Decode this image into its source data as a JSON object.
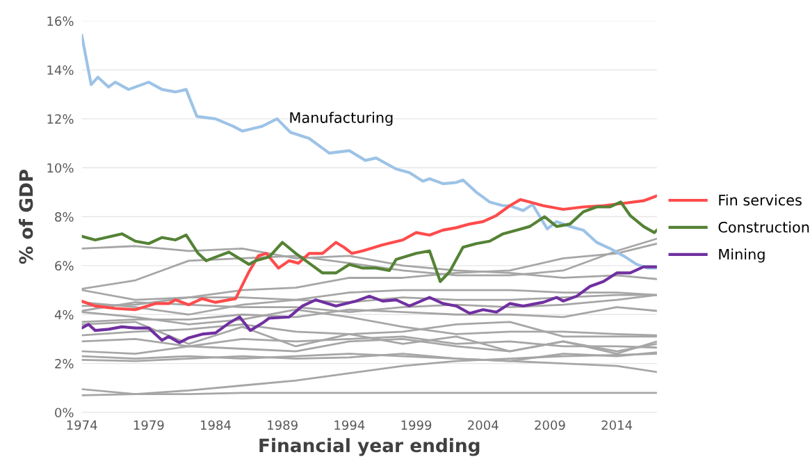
{
  "chart_data": {
    "type": "line",
    "xlabel": "Financial year ending",
    "ylabel": "% of GDP",
    "x": [
      1974,
      1978,
      1982,
      1986,
      1990,
      1994,
      1998,
      2002,
      2006,
      2010,
      2014,
      2017
    ],
    "xlim": [
      1974,
      2017
    ],
    "xticks": [
      1974,
      1979,
      1984,
      1989,
      1994,
      1999,
      2004,
      2009,
      2014
    ],
    "ylim": [
      0,
      16
    ],
    "yticks": [
      {
        "value": 0,
        "label": "0%"
      },
      {
        "value": 2,
        "label": "2%"
      },
      {
        "value": 4,
        "label": "4%"
      },
      {
        "value": 6,
        "label": "6%"
      },
      {
        "value": 8,
        "label": "8%"
      },
      {
        "value": 10,
        "label": "10%"
      },
      {
        "value": 12,
        "label": "12%"
      },
      {
        "value": 14,
        "label": "14%"
      },
      {
        "value": 16,
        "label": "16%"
      }
    ],
    "grid": "y",
    "legend": "right",
    "marker": "none",
    "line_style": "solid",
    "annotations": [
      "Manufacturing"
    ],
    "series": [
      {
        "color": "#a6a6a6",
        "values": [
          6.7,
          6.8,
          6.6,
          6.7,
          6.3,
          6.4,
          6.0,
          5.8,
          5.7,
          5.5,
          5.6,
          5.45
        ]
      },
      {
        "color": "#a6a6a6",
        "values": [
          5.05,
          5.4,
          6.2,
          6.3,
          6.4,
          6.1,
          5.8,
          5.6,
          5.6,
          5.8,
          6.6,
          7.1
        ]
      },
      {
        "color": "#a6a6a6",
        "values": [
          5.0,
          4.6,
          4.7,
          5.0,
          5.1,
          5.5,
          5.5,
          5.7,
          5.8,
          6.3,
          6.5,
          6.9
        ]
      },
      {
        "color": "#a6a6a6",
        "values": [
          4.35,
          4.4,
          4.7,
          4.7,
          4.6,
          4.9,
          5.0,
          5.0,
          5.0,
          4.9,
          4.9,
          4.8
        ]
      },
      {
        "color": "#a6a6a6",
        "values": [
          4.15,
          4.5,
          4.4,
          4.3,
          4.3,
          4.1,
          4.3,
          4.4,
          4.3,
          4.4,
          4.6,
          4.8
        ]
      },
      {
        "color": "#a6a6a6",
        "values": [
          3.7,
          3.8,
          3.8,
          4.0,
          3.9,
          4.2,
          4.1,
          4.0,
          4.0,
          3.9,
          4.3,
          4.15
        ]
      },
      {
        "color": "#a6a6a6",
        "values": [
          4.1,
          3.9,
          3.6,
          3.8,
          4.2,
          3.9,
          3.5,
          3.2,
          3.3,
          3.3,
          3.2,
          3.15
        ]
      },
      {
        "color": "#a6a6a6",
        "values": [
          3.15,
          3.3,
          3.4,
          3.6,
          3.3,
          3.2,
          3.3,
          3.6,
          3.7,
          3.1,
          3.1,
          3.1
        ]
      },
      {
        "color": "#a6a6a6",
        "values": [
          2.9,
          3.0,
          2.7,
          3.0,
          2.9,
          3.0,
          3.1,
          2.8,
          2.9,
          2.7,
          2.7,
          2.65
        ]
      },
      {
        "color": "#a6a6a6",
        "values": [
          2.5,
          2.4,
          2.7,
          2.6,
          2.5,
          2.9,
          3.0,
          2.7,
          2.5,
          2.9,
          2.5,
          2.8
        ]
      },
      {
        "color": "#a6a6a6",
        "values": [
          2.3,
          2.2,
          2.3,
          2.2,
          2.3,
          2.4,
          2.3,
          2.2,
          2.1,
          2.4,
          2.3,
          2.45
        ]
      },
      {
        "color": "#a6a6a6",
        "values": [
          2.15,
          2.1,
          2.2,
          2.3,
          2.2,
          2.25,
          2.4,
          2.2,
          2.1,
          2.0,
          1.9,
          1.65
        ]
      },
      {
        "color": "#a6a6a6",
        "values": [
          0.95,
          0.75,
          0.9,
          1.1,
          1.3,
          1.6,
          1.9,
          2.1,
          2.2,
          2.3,
          2.35,
          2.4
        ]
      },
      {
        "color": "#a6a6a6",
        "values": [
          0.7,
          0.75,
          0.75,
          0.8,
          0.8,
          0.8,
          0.8,
          0.8,
          0.8,
          0.8,
          0.8,
          0.8
        ]
      },
      {
        "color": "#a6a6a6",
        "values": [
          3.6,
          3.7,
          2.8,
          3.5,
          2.7,
          3.2,
          2.8,
          3.1,
          2.5,
          2.9,
          2.4,
          2.9
        ]
      },
      {
        "color": "#a6a6a6",
        "values": [
          4.5,
          4.3,
          4.0,
          4.4,
          4.6,
          4.5,
          4.7,
          4.6,
          4.6,
          4.7,
          4.8,
          4.8
        ]
      },
      {
        "color": "#9dc3e6",
        "x": [
          1974,
          1974.7,
          1975.2,
          1976,
          1976.5,
          1977.5,
          1979,
          1980,
          1981,
          1981.8,
          1982.6,
          1984,
          1985.3,
          1986,
          1987.5,
          1988.6,
          1989.6,
          1991,
          1992.5,
          1994,
          1995.2,
          1996,
          1997.5,
          1998.5,
          1999.5,
          2000,
          2001,
          2002,
          2002.5,
          2003.5,
          2004.5,
          2005.5,
          2006,
          2007,
          2007.7,
          2008.8,
          2009.5,
          2010.5,
          2011.5,
          2012.5,
          2013.5,
          2014.5,
          2015.5,
          2016.3,
          2017
        ],
        "values": [
          15.4,
          13.4,
          13.7,
          13.3,
          13.5,
          13.2,
          13.5,
          13.2,
          13.1,
          13.2,
          12.1,
          12.0,
          11.7,
          11.5,
          11.7,
          12.0,
          11.45,
          11.2,
          10.6,
          10.7,
          10.3,
          10.4,
          9.95,
          9.8,
          9.45,
          9.55,
          9.35,
          9.4,
          9.5,
          9.0,
          8.6,
          8.45,
          8.45,
          8.25,
          8.5,
          7.5,
          7.8,
          7.6,
          7.45,
          6.95,
          6.7,
          6.4,
          6.05,
          5.9,
          5.9
        ]
      },
      {
        "name": "Fin services",
        "color": "#ff4b4b",
        "x": [
          1974,
          1975,
          1976.5,
          1978,
          1979.5,
          1980.5,
          1981,
          1982,
          1983,
          1984,
          1985.5,
          1986.5,
          1987.2,
          1987.8,
          1988.7,
          1989.5,
          1990.2,
          1991,
          1992,
          1993,
          1993.6,
          1994.2,
          1995,
          1996.5,
          1998,
          1999,
          2000,
          2001,
          2002,
          2003,
          2004,
          2005,
          2006,
          2006.8,
          2007.5,
          2008.5,
          2010,
          2011.5,
          2013,
          2014.5,
          2016,
          2017
        ],
        "values": [
          4.55,
          4.35,
          4.25,
          4.2,
          4.45,
          4.45,
          4.6,
          4.4,
          4.65,
          4.5,
          4.65,
          5.75,
          6.4,
          6.5,
          5.9,
          6.2,
          6.1,
          6.5,
          6.5,
          6.95,
          6.75,
          6.5,
          6.6,
          6.85,
          7.05,
          7.35,
          7.25,
          7.45,
          7.55,
          7.7,
          7.8,
          8.05,
          8.45,
          8.7,
          8.6,
          8.45,
          8.3,
          8.4,
          8.45,
          8.55,
          8.65,
          8.85
        ]
      },
      {
        "name": "Construction",
        "color": "#548235",
        "x": [
          1974,
          1975,
          1976.2,
          1977,
          1978,
          1979,
          1980,
          1981,
          1981.8,
          1982.7,
          1983.3,
          1984,
          1985,
          1986.5,
          1987,
          1988,
          1989,
          1990,
          1991,
          1992,
          1993,
          1994,
          1995,
          1996,
          1997,
          1997.5,
          1999,
          2000,
          2000.8,
          2001.5,
          2002.5,
          2003.5,
          2004.5,
          2005.5,
          2006.5,
          2007.5,
          2008.6,
          2009.5,
          2010.5,
          2011.5,
          2012.5,
          2013.5,
          2014.3,
          2015,
          2016,
          2016.8,
          2017
        ],
        "values": [
          7.2,
          7.05,
          7.2,
          7.3,
          7.0,
          6.9,
          7.15,
          7.05,
          7.25,
          6.5,
          6.2,
          6.35,
          6.55,
          6.05,
          6.2,
          6.35,
          6.95,
          6.5,
          6.1,
          5.7,
          5.7,
          6.05,
          5.9,
          5.9,
          5.8,
          6.25,
          6.5,
          6.6,
          5.35,
          5.75,
          6.75,
          6.9,
          7.0,
          7.3,
          7.45,
          7.6,
          8.0,
          7.6,
          7.7,
          8.2,
          8.4,
          8.4,
          8.6,
          8.05,
          7.6,
          7.35,
          7.45
        ]
      },
      {
        "name": "Mining",
        "color": "#7030a0",
        "x": [
          1974,
          1974.5,
          1975,
          1976,
          1977,
          1978,
          1979,
          1980,
          1980.5,
          1981.3,
          1982,
          1983,
          1984,
          1985,
          1985.8,
          1986.6,
          1987.5,
          1988,
          1989.5,
          1990.5,
          1991.5,
          1993,
          1994.5,
          1995.5,
          1996.5,
          1997.5,
          1998.5,
          2000,
          2001,
          2002,
          2003,
          2004,
          2005,
          2006,
          2007,
          2008.5,
          2009.5,
          2010,
          2011,
          2012,
          2013,
          2014,
          2015,
          2016,
          2017
        ],
        "values": [
          3.45,
          3.6,
          3.35,
          3.4,
          3.5,
          3.45,
          3.45,
          2.95,
          3.1,
          2.85,
          3.05,
          3.2,
          3.25,
          3.65,
          3.9,
          3.35,
          3.65,
          3.85,
          3.9,
          4.35,
          4.6,
          4.35,
          4.55,
          4.75,
          4.55,
          4.6,
          4.35,
          4.7,
          4.45,
          4.35,
          4.05,
          4.2,
          4.1,
          4.45,
          4.35,
          4.5,
          4.7,
          4.55,
          4.75,
          5.15,
          5.35,
          5.7,
          5.7,
          5.95,
          5.95
        ]
      }
    ]
  }
}
